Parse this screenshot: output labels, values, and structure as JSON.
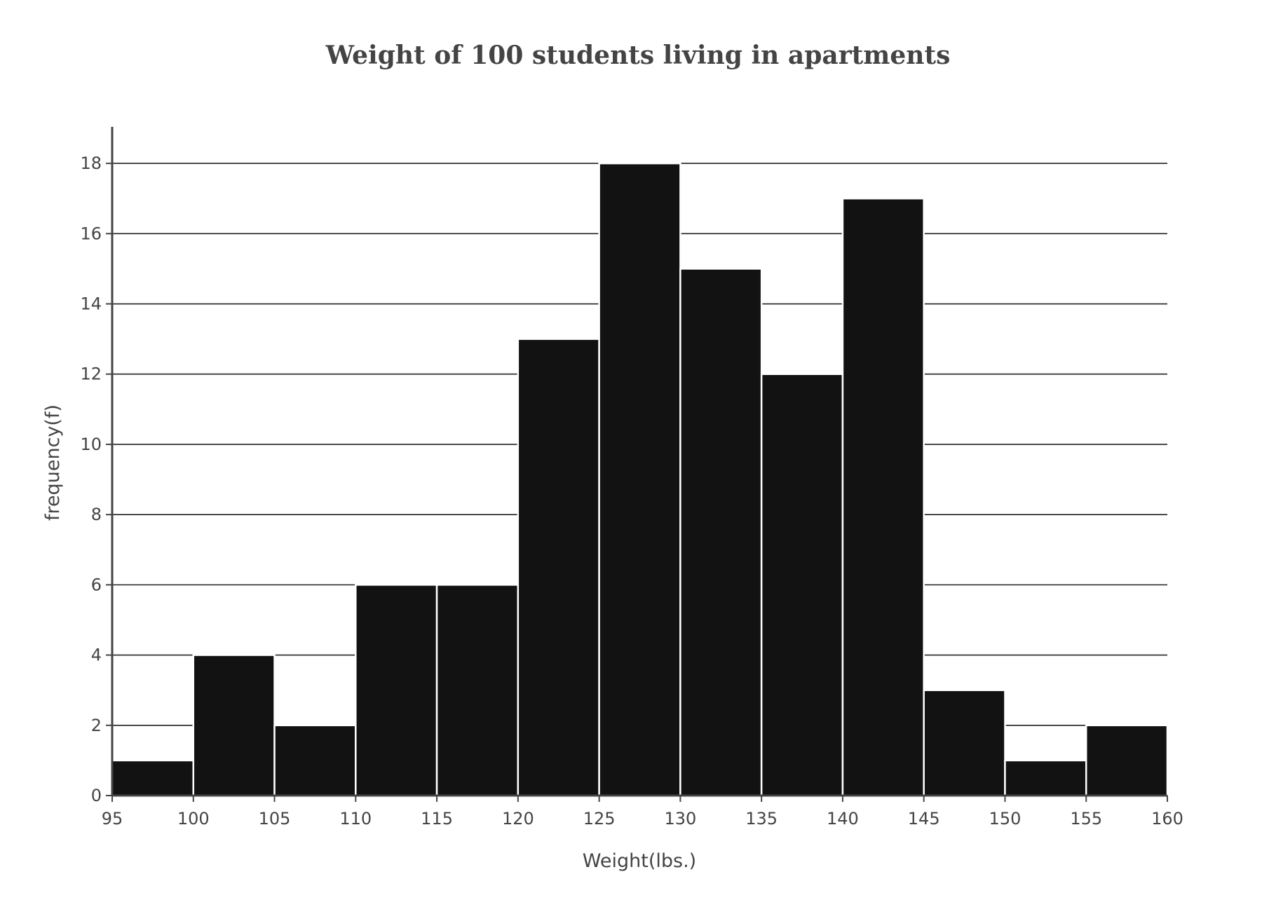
{
  "chart_data": {
    "type": "bar",
    "title": "Weight of 100 students living in apartments",
    "xlabel": "Weight(lbs.)",
    "ylabel": "frequency(f)",
    "bin_edges": [
      95,
      100,
      105,
      110,
      115,
      120,
      125,
      130,
      135,
      140,
      145,
      150,
      155,
      160
    ],
    "values": [
      1,
      4,
      2,
      6,
      6,
      13,
      18,
      15,
      12,
      17,
      3,
      1,
      2
    ],
    "xlim": [
      95,
      160
    ],
    "ylim": [
      0,
      19
    ],
    "x_ticks": [
      95,
      100,
      105,
      110,
      115,
      120,
      125,
      130,
      135,
      140,
      145,
      150,
      155,
      160
    ],
    "y_ticks": [
      0,
      2,
      4,
      6,
      8,
      10,
      12,
      14,
      16,
      18
    ],
    "grid": "horizontal",
    "colors": {
      "bar": "#121212",
      "bar_edge": "#ffffff",
      "grid": "#222222",
      "text": "#444444"
    }
  }
}
